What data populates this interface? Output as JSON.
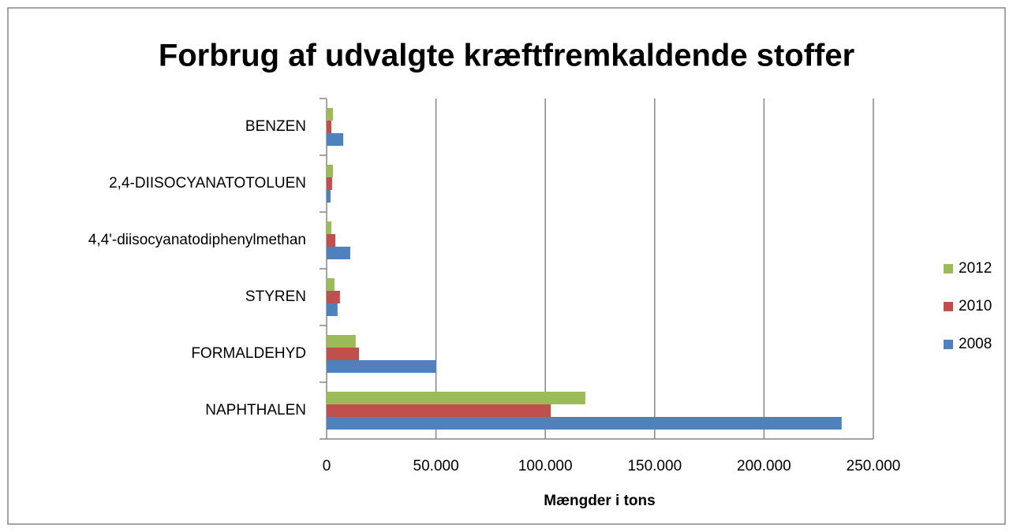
{
  "chart_data": {
    "type": "barh",
    "title": "Forbrug af udvalgte kræftfremkaldende stoffer",
    "x_label": "Mængder i tons",
    "categories": [
      "NAPHTHALEN",
      "FORMALDEHYD",
      "STYREN",
      "4,4'-diisocyanatodiphenylmethan",
      "2,4-DIISOCYANATOTOLUEN",
      "BENZEN"
    ],
    "series": [
      {
        "name": "2012",
        "color": "#9bbb59",
        "values": [
          118300,
          13300,
          3600,
          2200,
          2900,
          2900
        ]
      },
      {
        "name": "2010",
        "color": "#c0504d",
        "values": [
          102500,
          14800,
          6100,
          4000,
          2500,
          2200
        ]
      },
      {
        "name": "2008",
        "color": "#4f81bd",
        "values": [
          235500,
          50100,
          5000,
          10800,
          1800,
          7600
        ]
      }
    ],
    "xlim": [
      0,
      250000
    ],
    "xticks": [
      0,
      {
        "value": 50000,
        "label": "50.000"
      },
      {
        "value": 100000,
        "label": "100.000"
      },
      {
        "value": 150000,
        "label": "150.000"
      },
      {
        "value": 200000,
        "label": "200.000"
      },
      {
        "value": 250000,
        "label": "250.000"
      }
    ],
    "grid": true,
    "legend": "right"
  }
}
